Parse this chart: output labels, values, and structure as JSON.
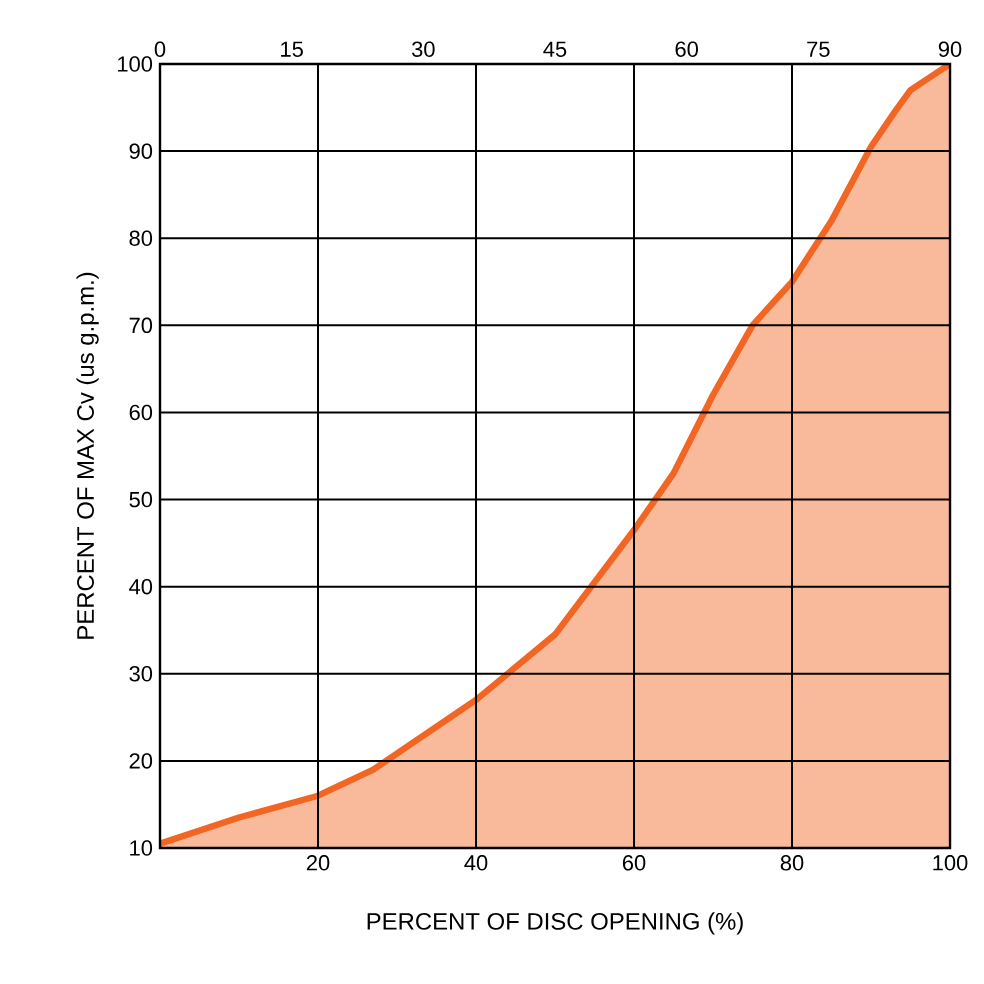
{
  "chart_data": {
    "type": "area",
    "xlabel": "PERCENT OF DISC OPENING (%)",
    "ylabel": "PERCENT OF MAX Cv (us g.p.m.)",
    "xlim": [
      0,
      100
    ],
    "xticks": [
      20,
      40,
      60,
      80,
      100
    ],
    "ylim": [
      10,
      100
    ],
    "yticks": [
      10,
      20,
      30,
      40,
      50,
      60,
      70,
      80,
      90,
      100
    ],
    "x2lim": [
      0,
      90
    ],
    "x2ticks": [
      0,
      15,
      30,
      45,
      60,
      75,
      90
    ],
    "grid": true,
    "series": [
      {
        "color": "#f26522",
        "x": [
          0,
          10,
          20,
          27,
          40,
          50,
          60,
          65,
          70,
          75,
          80,
          85,
          90,
          93,
          95,
          100
        ],
        "values": [
          10.5,
          13.5,
          16,
          19,
          27,
          34.5,
          46.5,
          53,
          62,
          70,
          75,
          82,
          90.5,
          94.5,
          97,
          100
        ]
      }
    ]
  }
}
